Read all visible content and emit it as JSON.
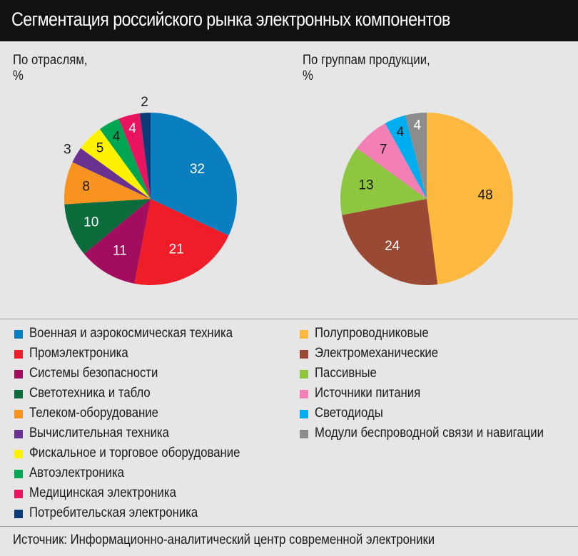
{
  "title": "Сегментация российского рынка электронных компонентов",
  "source": "Источник: Информационно-аналитический центр современной электроники",
  "chart_data": [
    {
      "type": "pie",
      "title": "По отраслям,",
      "ylabel": "%",
      "slices": [
        {
          "label": "Военная и аэрокосмическая техника",
          "value": 32,
          "color": "#0a7fc0",
          "text_color": "#ffffff"
        },
        {
          "label": "Промэлектроника",
          "value": 21,
          "color": "#ee1d27",
          "text_color": "#ffffff"
        },
        {
          "label": "Системы безопасности",
          "value": 11,
          "color": "#a20d5e",
          "text_color": "#ffffff"
        },
        {
          "label": "Светотехника и табло",
          "value": 10,
          "color": "#0b6b3a",
          "text_color": "#ffffff"
        },
        {
          "label": "Телеком-оборудование",
          "value": 8,
          "color": "#f7931e",
          "text_color": "#1a1a1a"
        },
        {
          "label": "Вычислительная техника",
          "value": 3,
          "color": "#6a3190",
          "text_color": "#1a1a1a"
        },
        {
          "label": "Фискальное и торговое оборудование",
          "value": 5,
          "color": "#fff200",
          "text_color": "#1a1a1a"
        },
        {
          "label": "Автоэлектроника",
          "value": 4,
          "color": "#00a651",
          "text_color": "#1a1a1a"
        },
        {
          "label": "Медицинская электроника",
          "value": 4,
          "color": "#e8145f",
          "text_color": "#ffffff"
        },
        {
          "label": "Потребительская электроника",
          "value": 2,
          "color": "#0c3c78",
          "text_color": "#1a1a1a"
        }
      ]
    },
    {
      "type": "pie",
      "title": "По группам продукции,",
      "ylabel": "%",
      "slices": [
        {
          "label": "Полупроводниковые",
          "value": 48,
          "color": "#fdb93f",
          "text_color": "#1a1a1a"
        },
        {
          "label": "Электромеханические",
          "value": 24,
          "color": "#9a4a34",
          "text_color": "#ffffff"
        },
        {
          "label": "Пассивные",
          "value": 13,
          "color": "#8dc63f",
          "text_color": "#1a1a1a"
        },
        {
          "label": "Источники питания",
          "value": 7,
          "color": "#f47fb4",
          "text_color": "#1a1a1a"
        },
        {
          "label": "Светодиоды",
          "value": 4,
          "color": "#00aeef",
          "text_color": "#1a1a1a"
        },
        {
          "label": "Модули беспроводной связи и навигации",
          "value": 4,
          "color": "#8c8c8c",
          "text_color": "#ffffff"
        }
      ]
    }
  ]
}
